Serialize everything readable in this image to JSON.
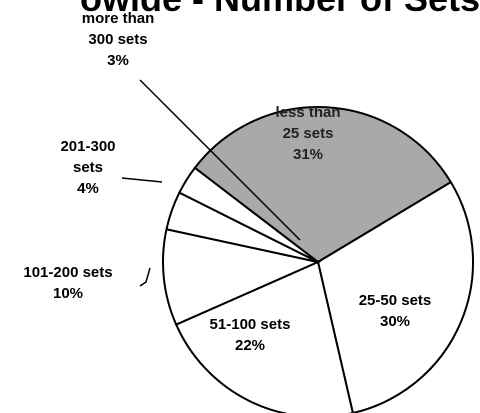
{
  "chart_data": {
    "type": "pie",
    "title": "owide - Number of Sets",
    "categories": [
      "less than 25 sets",
      "25-50 sets",
      "51-100 sets",
      "101-200 sets",
      "201-300 sets",
      "more than 300 sets"
    ],
    "values": [
      31,
      30,
      22,
      10,
      4,
      3
    ],
    "value_labels": [
      "31%",
      "30%",
      "22%",
      "10%",
      "4%",
      "3%"
    ],
    "colors": [
      "#a9a9a9",
      "#ffffff",
      "#ffffff",
      "#ffffff",
      "#ffffff",
      "#ffffff"
    ]
  }
}
